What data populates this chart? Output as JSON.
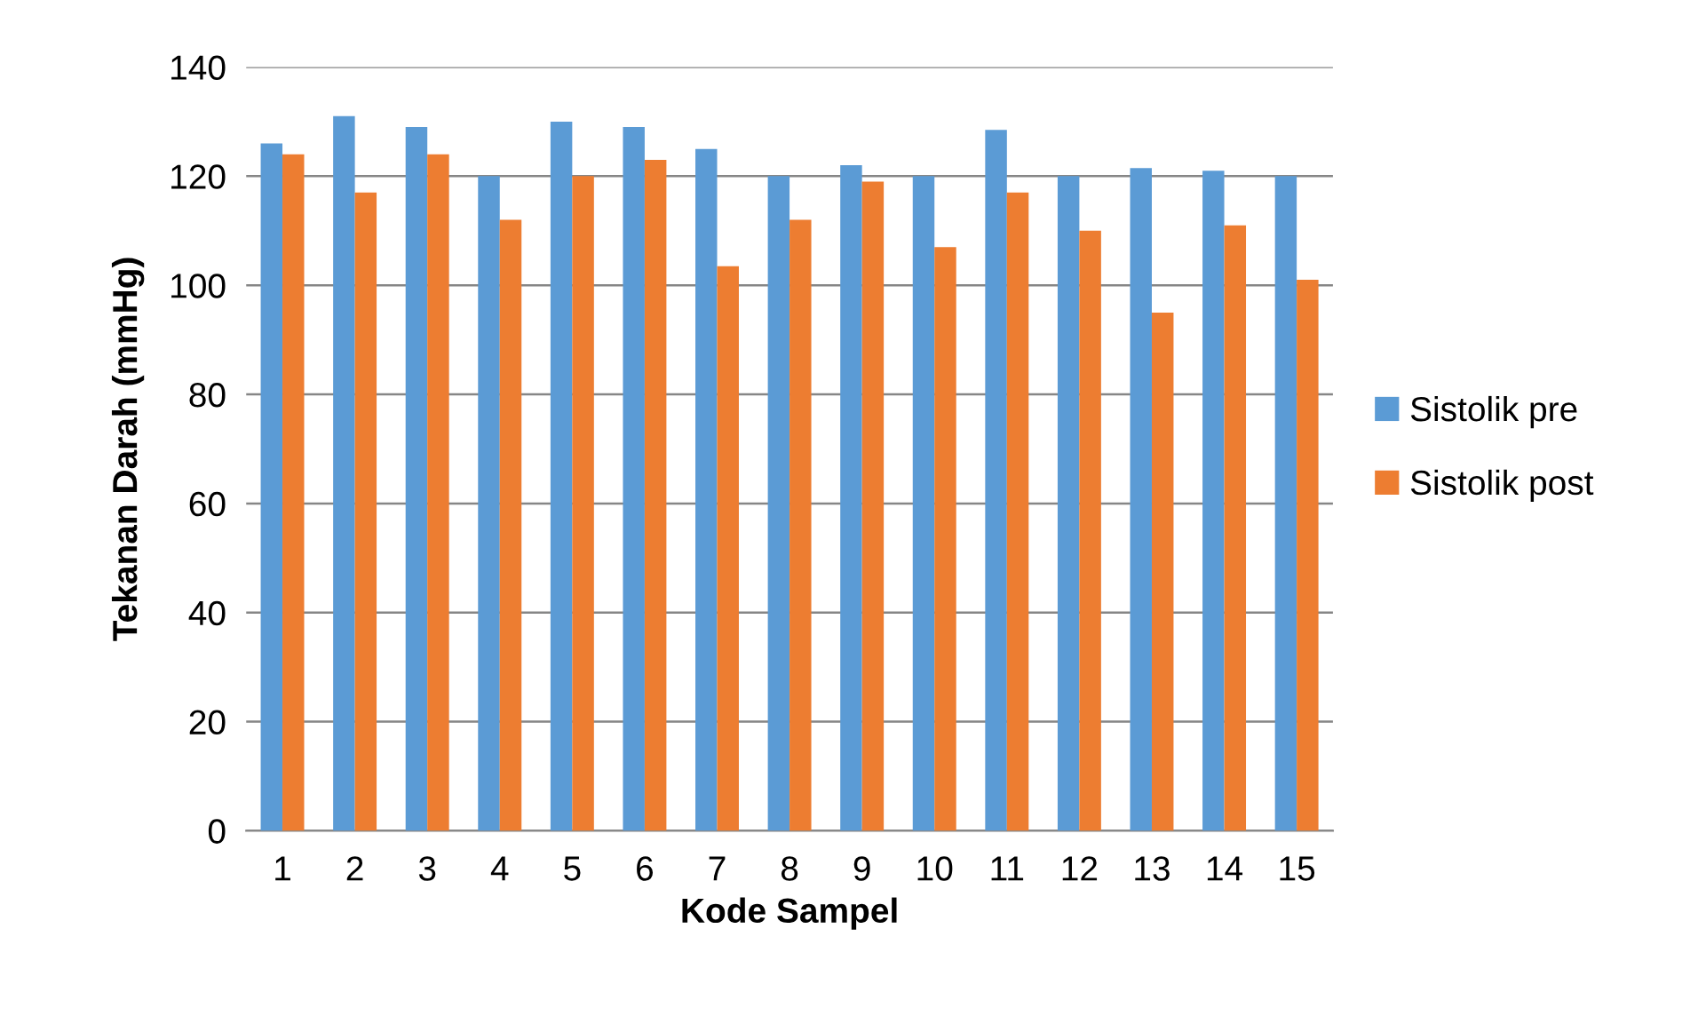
{
  "chart_data": {
    "type": "bar",
    "xlabel": "Kode Sampel",
    "ylabel": "Tekanan Darah (mmHg)",
    "categories": [
      "1",
      "2",
      "3",
      "4",
      "5",
      "6",
      "7",
      "8",
      "9",
      "10",
      "11",
      "12",
      "13",
      "14",
      "15"
    ],
    "series": [
      {
        "name": "Sistolik pre",
        "color": "#5b9bd5",
        "values": [
          126,
          131,
          129,
          120,
          130,
          129,
          125,
          120,
          122,
          120,
          128.5,
          120,
          121.5,
          121,
          120
        ]
      },
      {
        "name": "Sistolik post",
        "color": "#ed7d31",
        "values": [
          124,
          117,
          124,
          112,
          120,
          123,
          103.5,
          112,
          119,
          107,
          117,
          110,
          95,
          111,
          101
        ]
      }
    ],
    "ylim": [
      0,
      140
    ],
    "yticks": [
      0,
      20,
      40,
      60,
      80,
      100,
      120,
      140
    ],
    "grid": "y",
    "legend": "right"
  }
}
